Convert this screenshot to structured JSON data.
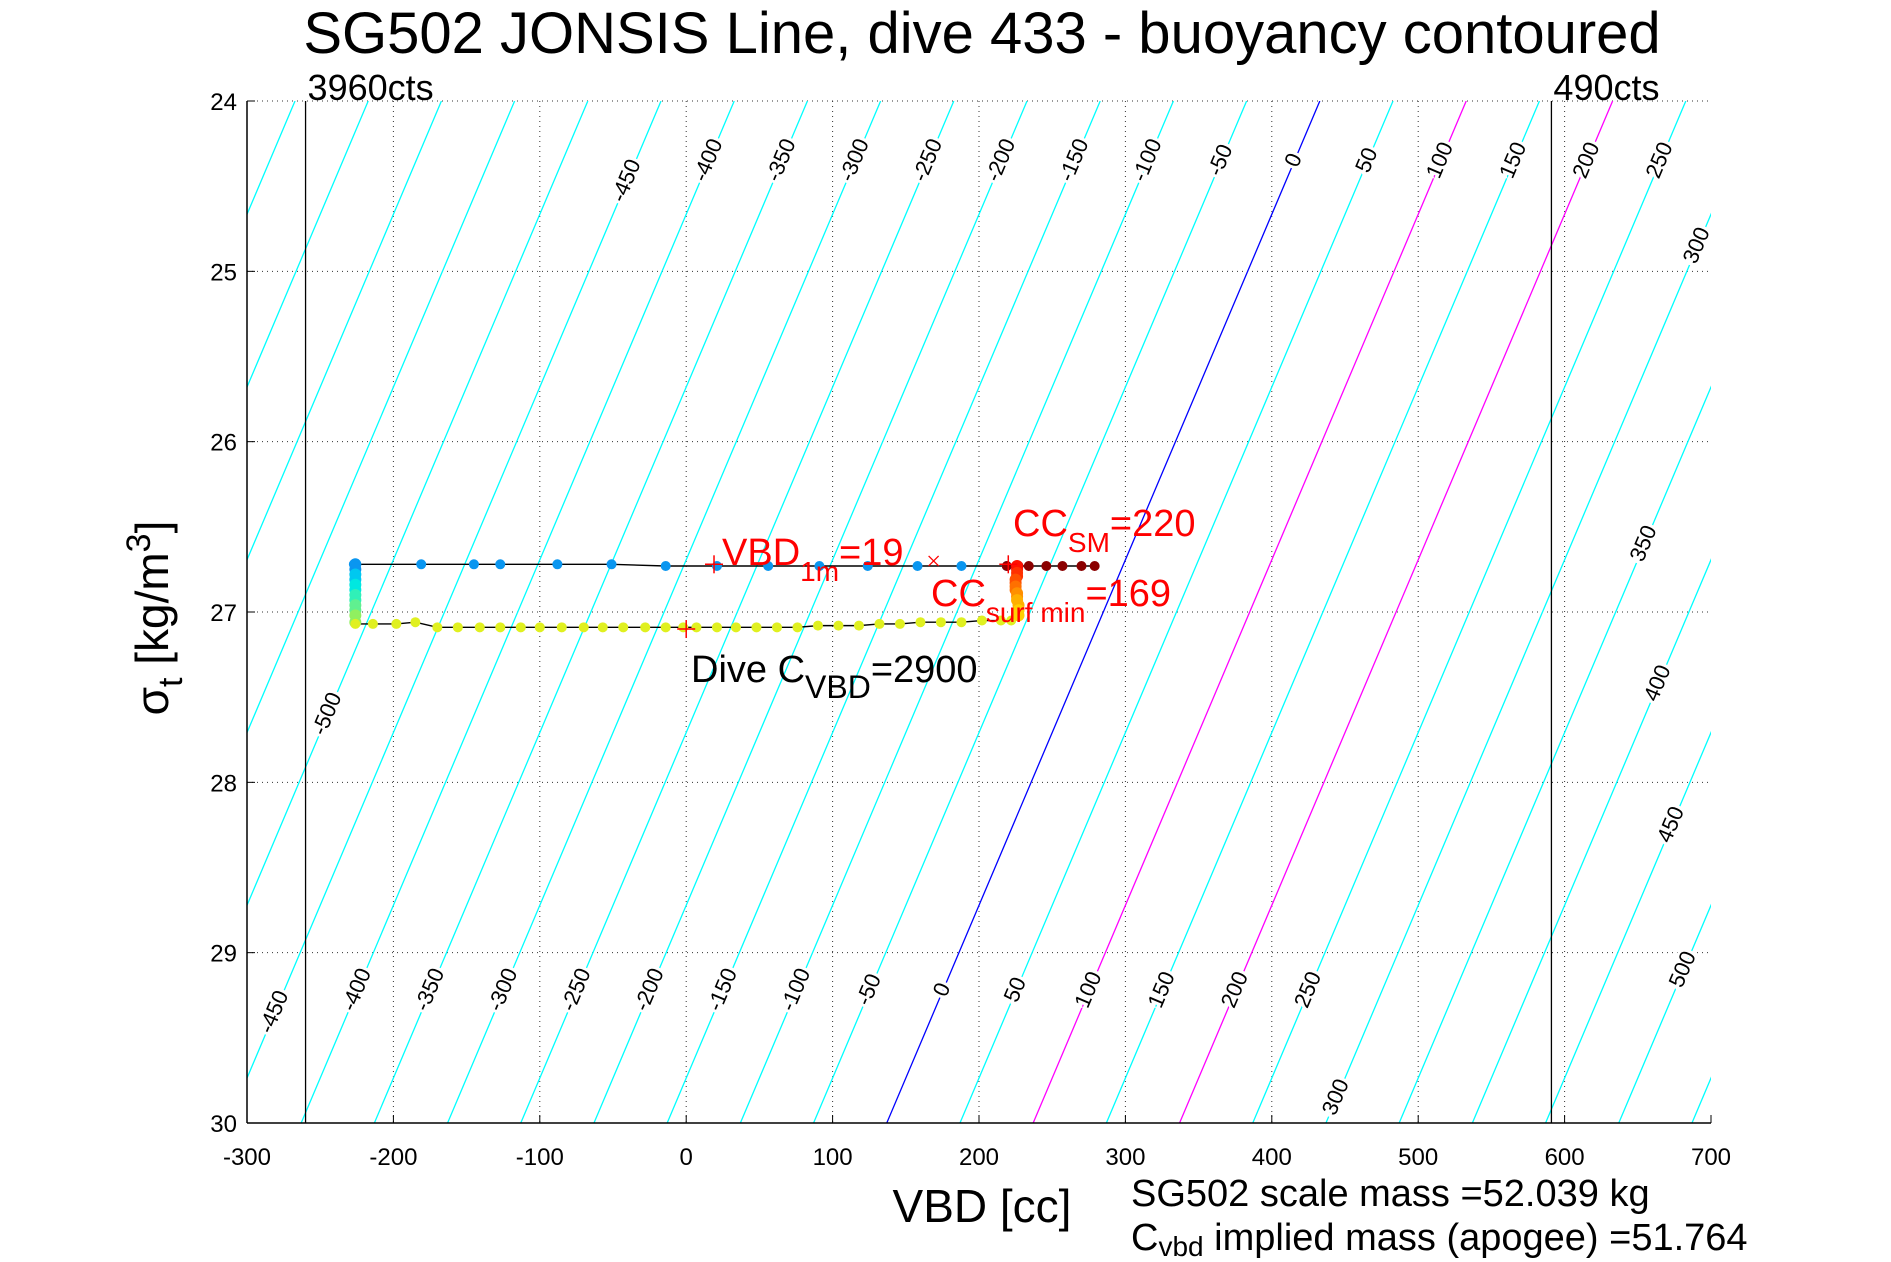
{
  "chart_data": {
    "type": "scatter",
    "title": "SG502 JONSIS Line, dive 433 - buoyancy contoured",
    "xlabel": "VBD [cc]",
    "ylabel": "σ",
    "ylabel_sub": "t",
    "ylabel_units": " [kg/m",
    "ylabel_sup": "3",
    "ylabel_close": "]",
    "xlim": [
      -300,
      700
    ],
    "ylim": [
      24,
      30
    ],
    "y_reversed": true,
    "grid": true,
    "xticks": [
      -300,
      -200,
      -100,
      0,
      100,
      200,
      300,
      400,
      500,
      600,
      700
    ],
    "yticks": [
      24,
      25,
      26,
      27,
      28,
      29,
      30
    ],
    "count_limits": [
      {
        "label": "3960cts",
        "vbd": -260
      },
      {
        "label": "490cts",
        "vbd": 591
      }
    ],
    "contours": {
      "levels": [
        -700,
        -650,
        -600,
        -550,
        -500,
        -450,
        -400,
        -350,
        -300,
        -250,
        -200,
        -150,
        -100,
        -50,
        0,
        50,
        100,
        150,
        200,
        250,
        300,
        350,
        400,
        450,
        500,
        550,
        600
      ],
      "zero_vbd_at_sigma30": 137,
      "vbd_per_sigma": -49.3,
      "colors": {
        "default": "#00ffff",
        "zero": "#0000ff",
        "highlight": "#ff00ff"
      },
      "highlight_levels": [
        100,
        200
      ],
      "labels_top": [
        "-450",
        "-400",
        "-350",
        "-300",
        "-250",
        "-200",
        "-150",
        "-100",
        "-50",
        "0",
        "50",
        "100",
        "150",
        "200",
        "250",
        "300",
        "350",
        "400",
        "450",
        "500"
      ],
      "labels_bottom": [
        "-500",
        "-450",
        "-400",
        "-350",
        "-300",
        "-250",
        "-200",
        "-150",
        "-100",
        "-50",
        "0",
        "50",
        "100",
        "150",
        "200",
        "250",
        "300"
      ]
    },
    "series": [
      {
        "name": "descent",
        "color": "#0a96f0",
        "line": true,
        "vbd": [
          -227,
          -181,
          -145,
          -127,
          -88,
          -51,
          -14,
          21,
          56,
          91,
          124,
          158,
          188,
          219
        ],
        "sigma": [
          26.72,
          26.72,
          26.72,
          26.72,
          26.72,
          26.72,
          26.73,
          26.73,
          26.73,
          26.73,
          26.73,
          26.73,
          26.73,
          26.73
        ]
      },
      {
        "name": "surface-tail",
        "color": "#8b0000",
        "line": true,
        "vbd": [
          219,
          227,
          234,
          246,
          257,
          270,
          279
        ],
        "sigma": [
          26.73,
          26.73,
          26.73,
          26.73,
          26.73,
          26.73,
          26.73
        ]
      },
      {
        "name": "apogee",
        "colors": [
          "#0a96f0",
          "#00c8f0",
          "#00e8e0",
          "#30f0b8",
          "#60f090",
          "#90f060"
        ],
        "line": false,
        "vbd": [
          -226,
          -226,
          -226,
          -226,
          -226,
          -226,
          -226,
          -226,
          -226,
          -226,
          -226,
          -226
        ],
        "sigma": [
          26.72,
          26.75,
          26.78,
          26.81,
          26.84,
          26.87,
          26.9,
          26.93,
          26.96,
          26.99,
          27.02,
          27.06
        ]
      },
      {
        "name": "ascent",
        "color": "#e0f020",
        "line": true,
        "vbd": [
          -226,
          -214,
          -198,
          -185,
          -170,
          -156,
          -141,
          -127,
          -113,
          -100,
          -85,
          -70,
          -57,
          -43,
          -28,
          -14,
          -2,
          7,
          21,
          34,
          48,
          62,
          76,
          90,
          104,
          118,
          132,
          146,
          160,
          174,
          188,
          202,
          215,
          222
        ],
        "sigma": [
          27.07,
          27.07,
          27.07,
          27.06,
          27.09,
          27.09,
          27.09,
          27.09,
          27.09,
          27.09,
          27.09,
          27.09,
          27.09,
          27.09,
          27.09,
          27.09,
          27.09,
          27.09,
          27.09,
          27.09,
          27.09,
          27.09,
          27.09,
          27.08,
          27.08,
          27.08,
          27.07,
          27.07,
          27.06,
          27.06,
          27.06,
          27.05,
          27.05,
          27.05
        ]
      },
      {
        "name": "surface-climb",
        "colors": [
          "#ff1000",
          "#ff3000",
          "#ff5000",
          "#ff7000",
          "#ff9000",
          "#ffb000",
          "#ffd000"
        ],
        "line": false,
        "vbd": [
          226,
          226,
          226,
          226,
          225,
          225,
          225,
          225,
          226,
          226,
          226,
          227,
          227,
          227
        ],
        "sigma": [
          26.73,
          26.75,
          26.77,
          26.79,
          26.81,
          26.83,
          26.85,
          26.87,
          26.89,
          26.91,
          26.93,
          26.96,
          26.99,
          27.02
        ]
      }
    ],
    "markers": [
      {
        "type": "plus",
        "vbd": 19,
        "sigma": 26.72,
        "color": "#ff0000"
      },
      {
        "type": "cross",
        "vbd": 169,
        "sigma": 26.7,
        "color": "#ff0000"
      },
      {
        "type": "plus",
        "vbd": 220,
        "sigma": 26.72,
        "color": "#ff0000"
      },
      {
        "type": "plus",
        "vbd": 0,
        "sigma": 27.1,
        "color": "#ff0000"
      }
    ],
    "annotations": {
      "vbd1m": {
        "main": "VBD",
        "sub": "1m",
        "value": "=19"
      },
      "ccsm": {
        "main": "CC",
        "sub": "SM",
        "value": "=220"
      },
      "ccsurf": {
        "main": "CC",
        "sub": "surf min",
        "value": "=169"
      },
      "divecvbd": {
        "main": "Dive C",
        "sub": "VBD",
        "value": "=2900"
      }
    },
    "footer": {
      "scale_mass": "SG502 scale mass =52.039 kg",
      "implied_main": "C",
      "implied_sub": "vbd",
      "implied_rest": " implied mass (apogee) =51.764"
    }
  }
}
